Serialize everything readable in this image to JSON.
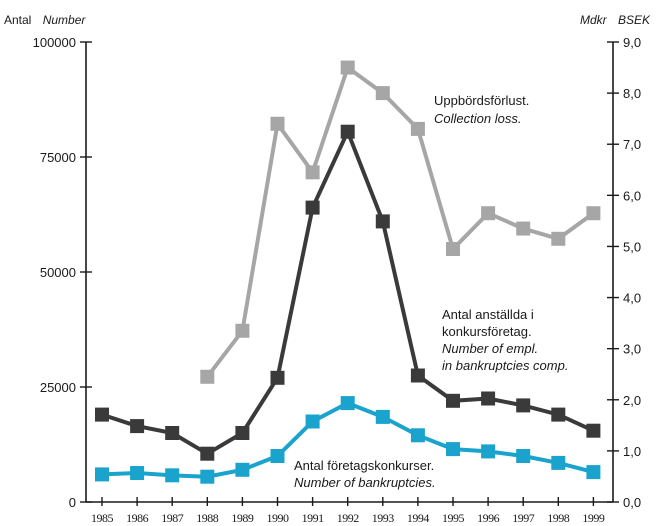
{
  "chart_data": {
    "type": "line",
    "title": "",
    "x": [
      "1985",
      "1986",
      "1987",
      "1988",
      "1989",
      "1990",
      "1991",
      "1992",
      "1993",
      "1994",
      "1995",
      "1996",
      "1997",
      "1998",
      "1999"
    ],
    "left_axis": {
      "title_sv": "Antal",
      "title_en": "Number",
      "ylim": [
        0,
        100000
      ],
      "ticks": [
        "0",
        "25000",
        "50000",
        "75000",
        "100000"
      ]
    },
    "right_axis": {
      "title_sv": "Mdkr",
      "title_en": "BSEK",
      "ylim": [
        0,
        9
      ],
      "ticks": [
        "0,0",
        "1,0",
        "2,0",
        "3,0",
        "4,0",
        "5,0",
        "6,0",
        "7,0",
        "8,0",
        "9,0"
      ]
    },
    "series": [
      {
        "key": "collection_loss",
        "label_sv": "Uppbördsförlust.",
        "label_en": "Collection loss.",
        "axis": "right",
        "color": "#a6a6a6",
        "values": [
          null,
          null,
          null,
          2.45,
          3.35,
          7.4,
          6.45,
          8.5,
          8.0,
          7.3,
          4.95,
          5.65,
          5.35,
          5.15,
          5.65
        ]
      },
      {
        "key": "employees",
        "label_sv": [
          "Antal anställda i",
          "konkursföretag."
        ],
        "label_en": [
          "Number of empl.",
          "in bankruptcies comp."
        ],
        "axis": "left",
        "color": "#3a3a3a",
        "values": [
          19000,
          16500,
          15000,
          10500,
          15000,
          27000,
          64000,
          80500,
          61000,
          27500,
          22000,
          22500,
          21000,
          19000,
          15500
        ]
      },
      {
        "key": "bankruptcies",
        "label_sv": "Antal företagskonkurser.",
        "label_en": "Number of bankruptcies.",
        "axis": "left",
        "color": "#1aa3cc",
        "values": [
          6000,
          6300,
          5800,
          5500,
          7000,
          10000,
          17500,
          21500,
          18500,
          14500,
          11500,
          11000,
          10000,
          8500,
          6500
        ]
      }
    ]
  }
}
